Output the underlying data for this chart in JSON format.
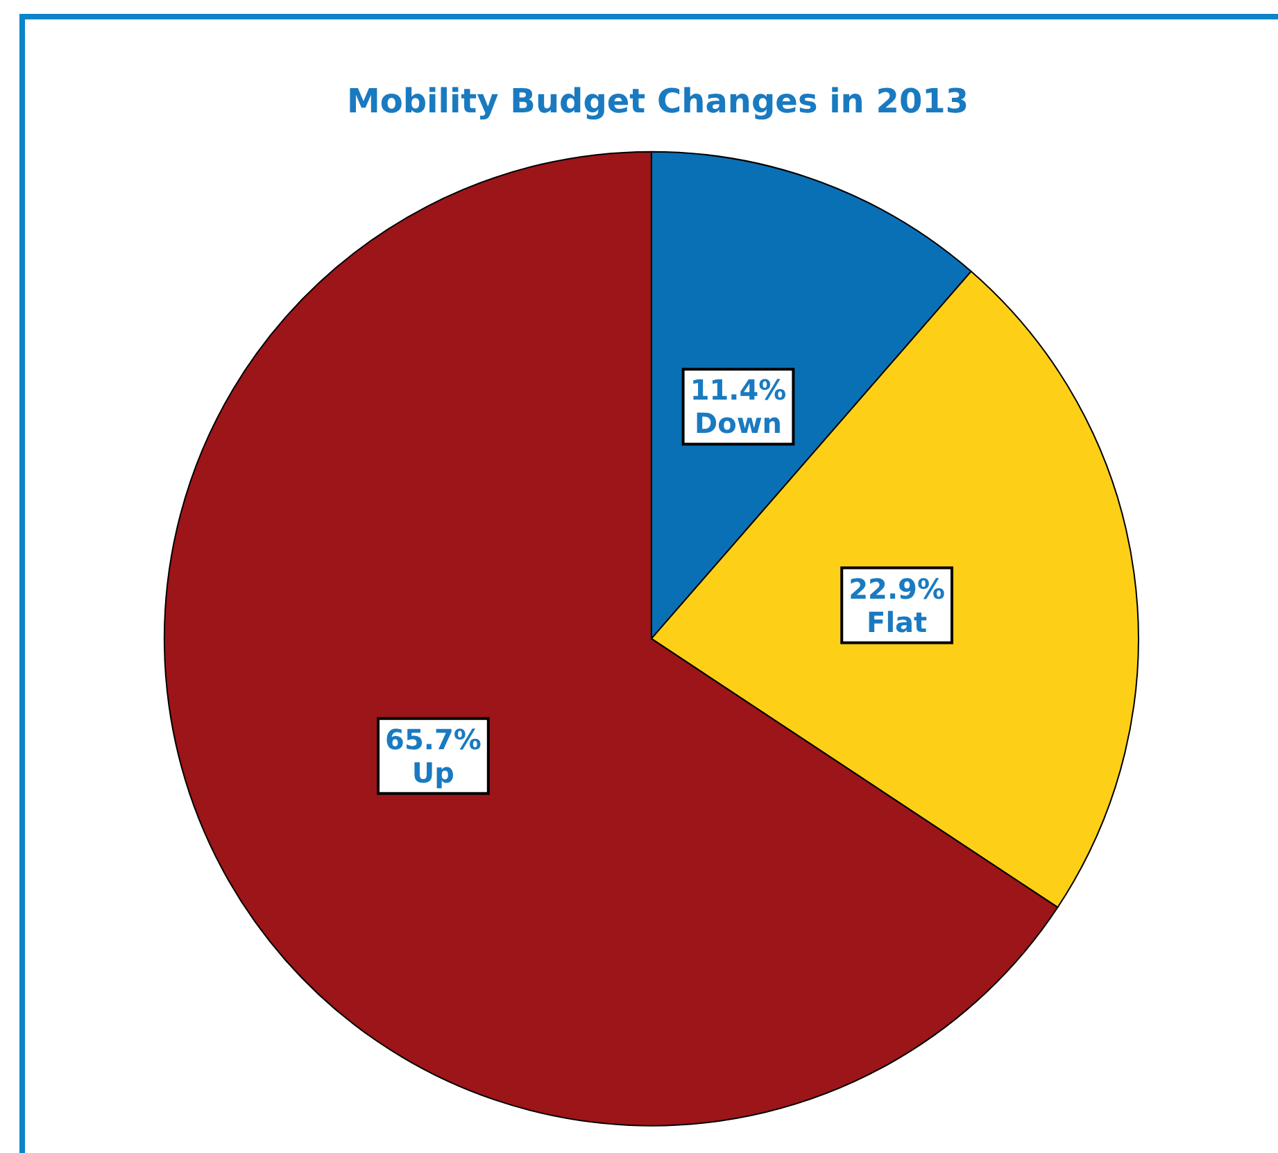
{
  "chart_data": {
    "type": "pie",
    "title": "Mobility Budget Changes in 2013",
    "categories": [
      "Down",
      "Flat",
      "Up"
    ],
    "values": [
      11.4,
      22.9,
      65.7
    ],
    "value_labels": [
      "11.4%",
      "22.9%",
      "65.7%"
    ],
    "colors": [
      "#0a70b6",
      "#fdd017",
      "#9c1519"
    ],
    "legend": false
  }
}
